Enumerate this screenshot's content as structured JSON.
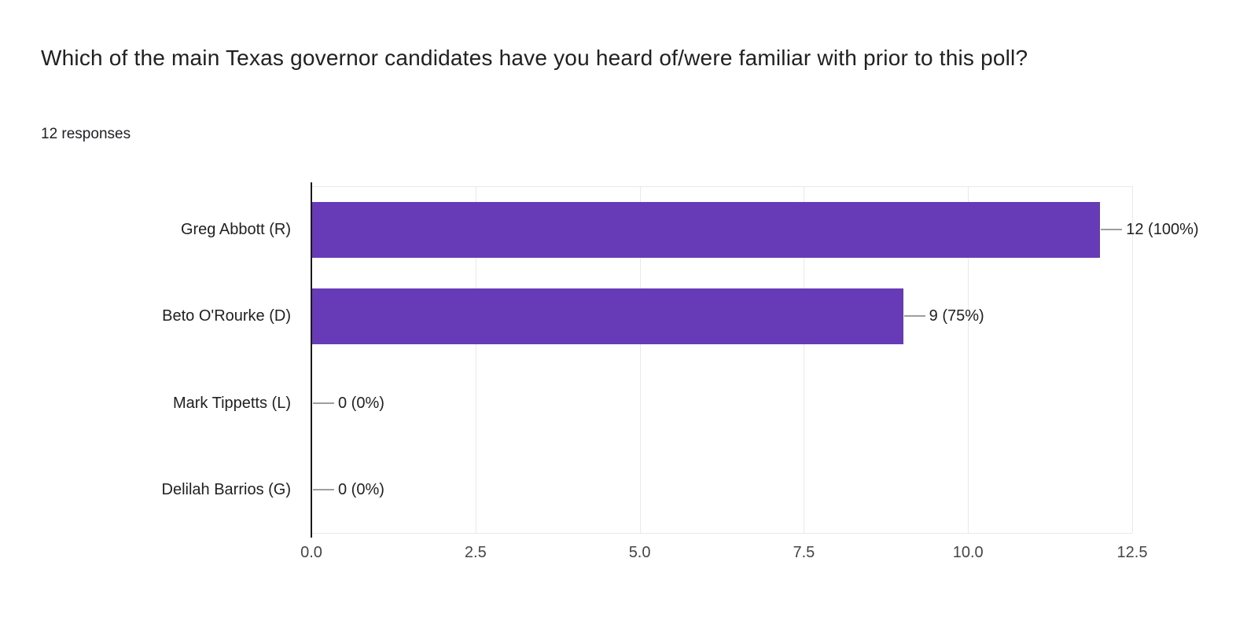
{
  "header": {
    "question": "Which of the main Texas governor candidates have you heard of/were familiar with prior to this poll?",
    "responses_count": "12 responses"
  },
  "chart_data": {
    "type": "bar",
    "orientation": "horizontal",
    "title": "Which of the main Texas governor candidates have you heard of/were familiar with prior to this poll?",
    "subtitle": "12 responses",
    "categories": [
      "Greg Abbott (R)",
      "Beto O'Rourke (D)",
      "Mark Tippetts (L)",
      "Delilah Barrios (G)"
    ],
    "values": [
      12,
      9,
      0,
      0
    ],
    "value_labels": [
      "12 (100%)",
      "9 (75%)",
      "0 (0%)",
      "0 (0%)"
    ],
    "xlim": [
      0,
      12.5
    ],
    "x_ticks": [
      0,
      2.5,
      5,
      7.5,
      10,
      12.5
    ],
    "x_tick_labels": [
      "0.0",
      "2.5",
      "5.0",
      "7.5",
      "10.0",
      "12.5"
    ],
    "grid": true,
    "legend": "none",
    "colors": {
      "bar": "#673ab7",
      "axis": "#1a1a1a",
      "gridline": "#e9e9e9",
      "plot_border": "#e8e8e8",
      "connector": "#9e9e9e",
      "text": "#212121",
      "tick_text": "#454545"
    }
  }
}
